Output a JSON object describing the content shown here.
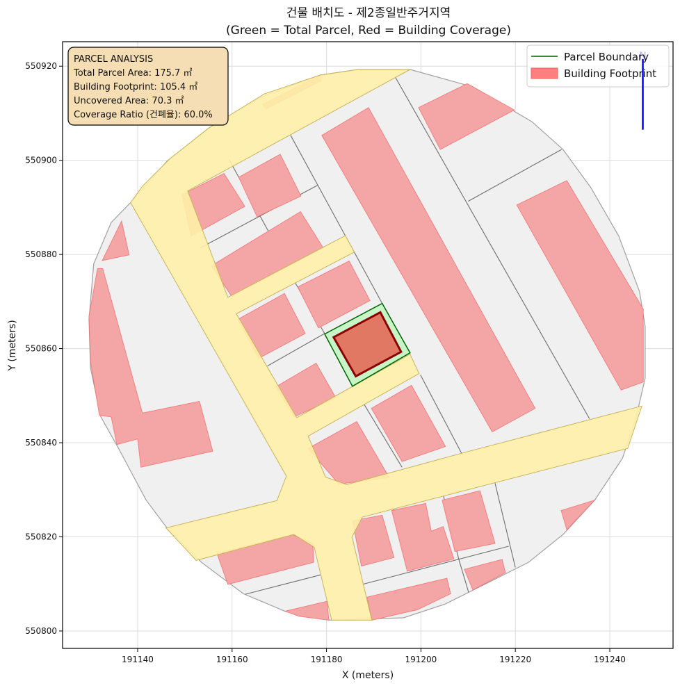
{
  "chart_data": {
    "type": "map-polygons",
    "title": "건물 배치도 - 제2종일반주거지역",
    "subtitle": "(Green = Total Parcel, Red = Building Coverage)",
    "xlabel": "X (meters)",
    "ylabel": "Y (meters)",
    "xlim": [
      191124.1,
      191253.4
    ],
    "ylim": [
      550796.3,
      550925.2
    ],
    "xticks": [
      "191140",
      "191160",
      "191180",
      "191200",
      "191220",
      "191240"
    ],
    "yticks": [
      "550800",
      "550820",
      "550840",
      "550860",
      "550880",
      "550900",
      "550920"
    ],
    "grid": true,
    "legend_position": "top-right",
    "legend": [
      {
        "label": "Parcel Boundary",
        "color": "#006400"
      },
      {
        "label": "Building Footprint",
        "color": "#ff7f7f"
      }
    ],
    "colors": {
      "area_fill": "#f0f0f0",
      "area_stroke": "#a0a0a0",
      "road_fill": "#fff0a8",
      "road_stroke": "#c8b45a",
      "building_fill": "#f4a6a6",
      "building_stroke": "#f07070",
      "parcel_fill": "#c8f5c8",
      "parcel_stroke": "#006400",
      "target_fill": "#e07864",
      "target_stroke": "#8b0000",
      "north_arrow": "#0000ff"
    },
    "study_area": [
      [
        191138.5,
        550891.0
      ],
      [
        191146.2,
        550899.8
      ],
      [
        191155.0,
        550906.8
      ],
      [
        191166.1,
        550913.4
      ],
      [
        191178.6,
        550918.1
      ],
      [
        191186.7,
        550919.3
      ],
      [
        191197.7,
        550919.3
      ],
      [
        191211.0,
        550915.6
      ],
      [
        191223.5,
        550908.2
      ],
      [
        191230.1,
        550902.3
      ],
      [
        191236.0,
        550894.2
      ],
      [
        191241.9,
        550883.9
      ],
      [
        191246.3,
        550872.1
      ],
      [
        191247.5,
        550864.7
      ],
      [
        191247.5,
        550853.7
      ],
      [
        191245.6,
        550845.5
      ],
      [
        191242.7,
        550836.7
      ],
      [
        191236.8,
        550827.8
      ],
      [
        191230.1,
        550820.5
      ],
      [
        191222.8,
        550814.6
      ],
      [
        191213.9,
        550810.1
      ],
      [
        191205.1,
        550805.7
      ],
      [
        191196.3,
        550802.8
      ],
      [
        191180.8,
        550802.3
      ],
      [
        191171.2,
        550804.2
      ],
      [
        191162.4,
        550807.9
      ],
      [
        191153.5,
        550814.6
      ],
      [
        191146.2,
        550821.9
      ],
      [
        191141.8,
        550827.8
      ],
      [
        191135.9,
        550838.9
      ],
      [
        191132.2,
        550845.5
      ],
      [
        191130.0,
        550855.9
      ],
      [
        191129.7,
        550866.2
      ],
      [
        191130.7,
        550878.0
      ],
      [
        191134.4,
        550886.8
      ]
    ],
    "roads": [
      [
        [
          191138.5,
          550891.0
        ],
        [
          191141.0,
          550894.5
        ],
        [
          191146.9,
          550900.4
        ],
        [
          191155.0,
          550906.8
        ],
        [
          191166.8,
          550914.1
        ],
        [
          191178.6,
          550918.1
        ],
        [
          191186.7,
          550919.3
        ],
        [
          191197.7,
          550919.3
        ],
        [
          191175.6,
          550907.2
        ],
        [
          191150.6,
          550893.5
        ],
        [
          191159.1,
          550870.9
        ],
        [
          191184.0,
          550884.0
        ],
        [
          191185.9,
          550880.5
        ],
        [
          191160.9,
          550867.4
        ],
        [
          191173.7,
          550845.3
        ],
        [
          191197.7,
          550858.8
        ],
        [
          191199.6,
          550854.7
        ],
        [
          191176.1,
          550841.4
        ],
        [
          191179.8,
          550832.7
        ],
        [
          191184.3,
          550831.1
        ],
        [
          191209.1,
          550837.9
        ],
        [
          191246.8,
          550847.8
        ],
        [
          191243.8,
          550838.8
        ],
        [
          191187.6,
          550824.2
        ],
        [
          191185.4,
          550820.0
        ],
        [
          191189.6,
          550802.3
        ],
        [
          191181.1,
          550802.3
        ],
        [
          191177.4,
          550817.8
        ],
        [
          191173.1,
          550820.5
        ],
        [
          191152.4,
          550815.0
        ],
        [
          191146.0,
          550821.9
        ],
        [
          191169.5,
          550827.7
        ],
        [
          191171.5,
          550832.9
        ]
      ]
    ],
    "parcel_lines": [
      [
        [
          191194.5,
          550917.8
        ],
        [
          191235.7,
          550845.1
        ]
      ],
      [
        [
          191210.0,
          550891.3
        ],
        [
          191229.8,
          550902.3
        ]
      ],
      [
        [
          191172.4,
          550905.3
        ],
        [
          191191.8,
          550869.6
        ]
      ],
      [
        [
          191159.4,
          550900.1
        ],
        [
          191171.7,
          550877.6
        ]
      ],
      [
        [
          191153.3,
          550881.4
        ],
        [
          191178.1,
          550894.7
        ]
      ],
      [
        [
          191173.4,
          550873.9
        ],
        [
          191179.6,
          550863.2
        ]
      ],
      [
        [
          191167.5,
          550856.3
        ],
        [
          191179.6,
          550863.2
        ]
      ],
      [
        [
          191199.9,
          550854.4
        ],
        [
          191208.8,
          550837.4
        ]
      ],
      [
        [
          191188.0,
          550848.1
        ],
        [
          191196.0,
          550834.8
        ]
      ],
      [
        [
          191215.7,
          550831.4
        ],
        [
          191220.0,
          550813.5
        ]
      ],
      [
        [
          191178.7,
          550811.9
        ],
        [
          191162.8,
          550807.8
        ]
      ],
      [
        [
          191187.6,
          550809.9
        ],
        [
          191218.6,
          550818.0
        ]
      ],
      [
        [
          191208.0,
          550815.3
        ],
        [
          191210.1,
          550808.2
        ]
      ],
      [
        [
          191194.2,
          550825.9
        ],
        [
          191197.6,
          550812.8
        ]
      ],
      [
        [
          191204.8,
          550828.6
        ],
        [
          191208.0,
          550815.3
        ]
      ]
    ],
    "buildings": [
      [
        [
          191179.0,
          550905.3
        ],
        [
          191188.9,
          550911.2
        ],
        [
          191224.2,
          550847.3
        ],
        [
          191215.1,
          550842.3
        ]
      ],
      [
        [
          191199.5,
          550911.2
        ],
        [
          191209.8,
          550916.3
        ],
        [
          191219.8,
          550910.7
        ],
        [
          191204.1,
          550902.3
        ]
      ],
      [
        [
          191220.3,
          550890.5
        ],
        [
          191230.9,
          550895.7
        ],
        [
          191247.1,
          550868.4
        ],
        [
          191247.1,
          550852.9
        ],
        [
          191242.4,
          550851.2
        ]
      ],
      [
        [
          191149.4,
          550892.7
        ],
        [
          191158.3,
          550897.2
        ],
        [
          191162.7,
          550890.2
        ],
        [
          191151.3,
          550883.9
        ]
      ],
      [
        [
          191161.4,
          550896.4
        ],
        [
          191170.2,
          550901.3
        ],
        [
          191174.6,
          550892.4
        ],
        [
          191165.3,
          550888.0
        ]
      ],
      [
        [
          191155.6,
          550877.6
        ],
        [
          191174.5,
          550889.1
        ],
        [
          191179.3,
          550881.4
        ],
        [
          191159.9,
          550871.1
        ]
      ],
      [
        [
          191173.9,
          550873.1
        ],
        [
          191184.8,
          550878.6
        ],
        [
          191189.2,
          550870.2
        ],
        [
          191178.3,
          550864.4
        ]
      ],
      [
        [
          191161.2,
          550866.2
        ],
        [
          191171.1,
          550871.7
        ],
        [
          191175.5,
          550863.2
        ],
        [
          191165.6,
          550857.9
        ]
      ],
      [
        [
          191169.3,
          550851.9
        ],
        [
          191177.8,
          550856.9
        ],
        [
          191182.0,
          550849.5
        ],
        [
          191173.1,
          550845.5
        ]
      ],
      [
        [
          191189.5,
          550847.3
        ],
        [
          191198.0,
          550852.2
        ],
        [
          191205.2,
          550839.2
        ],
        [
          191196.0,
          550836.0
        ]
      ],
      [
        [
          191176.1,
          550838.8
        ],
        [
          191186.4,
          550844.5
        ],
        [
          191193.3,
          550832.6
        ],
        [
          191182.6,
          550831.2
        ]
      ],
      [
        [
          191131.5,
          550877.0
        ],
        [
          191132.6,
          550877.0
        ],
        [
          191141.0,
          550846.3
        ],
        [
          191153.1,
          550848.8
        ],
        [
          191155.9,
          550838.2
        ],
        [
          191140.7,
          550834.8
        ],
        [
          191140.0,
          550840.8
        ],
        [
          191135.6,
          550839.6
        ],
        [
          191134.4,
          550845.5
        ],
        [
          191131.9,
          550845.8
        ],
        [
          191130.0,
          550857.3
        ],
        [
          191129.7,
          550866.9
        ]
      ],
      [
        [
          191132.5,
          550878.7
        ],
        [
          191136.6,
          550887.1
        ],
        [
          191138.2,
          550879.9
        ]
      ],
      [
        [
          191166.5,
          550911.9
        ],
        [
          191178.6,
          550918.1
        ],
        [
          191178.9,
          550916.9
        ],
        [
          191167.2,
          550910.9
        ]
      ],
      [
        [
          191156.8,
          550816.5
        ],
        [
          191172.7,
          550820.5
        ],
        [
          191177.1,
          550818.6
        ],
        [
          191177.3,
          550814.6
        ],
        [
          191159.1,
          550809.9
        ]
      ],
      [
        [
          191185.5,
          550823.4
        ],
        [
          191191.8,
          550824.6
        ],
        [
          191194.3,
          550815.6
        ],
        [
          191187.4,
          550813.8
        ]
      ],
      [
        [
          191193.8,
          550825.6
        ],
        [
          191201.0,
          550827.1
        ],
        [
          191202.2,
          550821.2
        ],
        [
          191204.7,
          550822.2
        ],
        [
          191207.0,
          550815.3
        ],
        [
          191197.1,
          550812.7
        ]
      ],
      [
        [
          191204.5,
          550827.8
        ],
        [
          191212.5,
          550829.8
        ],
        [
          191215.7,
          550818.6
        ],
        [
          191207.2,
          550816.9
        ]
      ],
      [
        [
          191209.2,
          550813.1
        ],
        [
          191217.2,
          550815.2
        ],
        [
          191217.9,
          550812.4
        ],
        [
          191211.0,
          550808.7
        ]
      ],
      [
        [
          191188.6,
          550807.2
        ],
        [
          191205.5,
          550811.2
        ],
        [
          191206.3,
          550807.9
        ],
        [
          191199.2,
          550804.5
        ],
        [
          191189.6,
          550802.3
        ]
      ],
      [
        [
          191171.2,
          550804.2
        ],
        [
          191180.1,
          550806.3
        ],
        [
          191180.5,
          550802.3
        ],
        [
          191174.2,
          550803.1
        ]
      ],
      [
        [
          191229.7,
          550825.6
        ],
        [
          191236.8,
          550827.8
        ],
        [
          191230.9,
          550821.5
        ]
      ]
    ],
    "target_parcel": [
      [
        191179.6,
        550863.1
      ],
      [
        191191.8,
        550869.6
      ],
      [
        191197.7,
        550859.1
      ],
      [
        191185.5,
        550852.0
      ]
    ],
    "target_building": [
      [
        191181.5,
        550862.4
      ],
      [
        191191.4,
        550867.7
      ],
      [
        191195.8,
        550859.3
      ],
      [
        191186.2,
        550854.1
      ]
    ],
    "north_arrow": {
      "label": "N",
      "x": 191247.0,
      "y_start": 550906.5,
      "y_end": 550923.0
    }
  },
  "info_box": {
    "heading": "PARCEL ANALYSIS",
    "lines": [
      "Total Parcel Area: 175.7 ㎡",
      "Building Footprint: 105.4 ㎡",
      "Uncovered Area: 70.3 ㎡",
      "Coverage Ratio (건폐율): 60.0%"
    ]
  }
}
